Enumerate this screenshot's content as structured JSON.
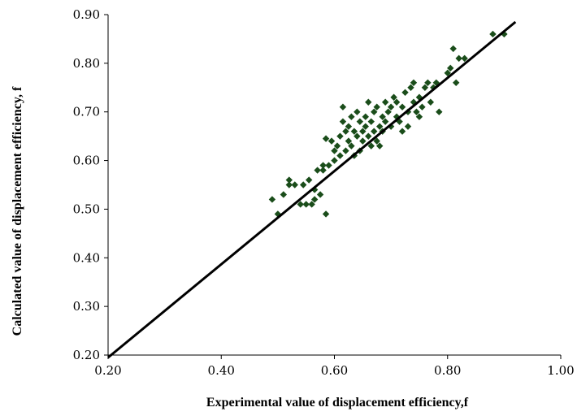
{
  "chart_data": {
    "type": "scatter",
    "title": "",
    "xlabel": "Experimental value of displacement efficiency,f",
    "ylabel": "Calculated value of displacement efficiency, f",
    "xlim": [
      0.2,
      1.0
    ],
    "ylim": [
      0.2,
      0.9
    ],
    "x_ticks": [
      "0.20",
      "0.40",
      "0.60",
      "0.80",
      "1.00"
    ],
    "y_ticks": [
      "0.20",
      "0.30",
      "0.40",
      "0.50",
      "0.60",
      "0.70",
      "0.80",
      "0.90"
    ],
    "grid": false,
    "legend": "none",
    "marker_color": "#1a4d1a",
    "line_color": "#000000",
    "reference_line": {
      "x": [
        0.2,
        0.92
      ],
      "y": [
        0.195,
        0.885
      ]
    },
    "series": [
      {
        "marker": "diamond",
        "points": [
          [
            0.49,
            0.52
          ],
          [
            0.5,
            0.49
          ],
          [
            0.51,
            0.53
          ],
          [
            0.52,
            0.56
          ],
          [
            0.52,
            0.55
          ],
          [
            0.53,
            0.55
          ],
          [
            0.54,
            0.51
          ],
          [
            0.545,
            0.55
          ],
          [
            0.55,
            0.51
          ],
          [
            0.555,
            0.56
          ],
          [
            0.56,
            0.51
          ],
          [
            0.565,
            0.54
          ],
          [
            0.565,
            0.52
          ],
          [
            0.57,
            0.58
          ],
          [
            0.575,
            0.53
          ],
          [
            0.58,
            0.59
          ],
          [
            0.58,
            0.58
          ],
          [
            0.585,
            0.49
          ],
          [
            0.585,
            0.645
          ],
          [
            0.59,
            0.59
          ],
          [
            0.595,
            0.64
          ],
          [
            0.6,
            0.62
          ],
          [
            0.6,
            0.6
          ],
          [
            0.605,
            0.63
          ],
          [
            0.61,
            0.61
          ],
          [
            0.61,
            0.65
          ],
          [
            0.615,
            0.68
          ],
          [
            0.615,
            0.71
          ],
          [
            0.62,
            0.66
          ],
          [
            0.62,
            0.62
          ],
          [
            0.625,
            0.64
          ],
          [
            0.625,
            0.67
          ],
          [
            0.63,
            0.63
          ],
          [
            0.63,
            0.69
          ],
          [
            0.635,
            0.66
          ],
          [
            0.635,
            0.61
          ],
          [
            0.64,
            0.65
          ],
          [
            0.64,
            0.7
          ],
          [
            0.645,
            0.68
          ],
          [
            0.645,
            0.62
          ],
          [
            0.65,
            0.66
          ],
          [
            0.65,
            0.64
          ],
          [
            0.655,
            0.69
          ],
          [
            0.655,
            0.67
          ],
          [
            0.66,
            0.65
          ],
          [
            0.66,
            0.72
          ],
          [
            0.665,
            0.68
          ],
          [
            0.665,
            0.63
          ],
          [
            0.67,
            0.66
          ],
          [
            0.67,
            0.7
          ],
          [
            0.675,
            0.64
          ],
          [
            0.675,
            0.71
          ],
          [
            0.68,
            0.67
          ],
          [
            0.68,
            0.63
          ],
          [
            0.685,
            0.69
          ],
          [
            0.685,
            0.66
          ],
          [
            0.69,
            0.72
          ],
          [
            0.69,
            0.68
          ],
          [
            0.695,
            0.7
          ],
          [
            0.7,
            0.67
          ],
          [
            0.7,
            0.71
          ],
          [
            0.705,
            0.73
          ],
          [
            0.71,
            0.69
          ],
          [
            0.71,
            0.72
          ],
          [
            0.715,
            0.68
          ],
          [
            0.72,
            0.71
          ],
          [
            0.72,
            0.66
          ],
          [
            0.725,
            0.74
          ],
          [
            0.73,
            0.7
          ],
          [
            0.73,
            0.67
          ],
          [
            0.735,
            0.75
          ],
          [
            0.74,
            0.72
          ],
          [
            0.74,
            0.76
          ],
          [
            0.745,
            0.7
          ],
          [
            0.75,
            0.73
          ],
          [
            0.75,
            0.69
          ],
          [
            0.755,
            0.71
          ],
          [
            0.76,
            0.75
          ],
          [
            0.765,
            0.76
          ],
          [
            0.77,
            0.72
          ],
          [
            0.775,
            0.75
          ],
          [
            0.78,
            0.76
          ],
          [
            0.785,
            0.7
          ],
          [
            0.8,
            0.78
          ],
          [
            0.805,
            0.79
          ],
          [
            0.81,
            0.83
          ],
          [
            0.815,
            0.76
          ],
          [
            0.82,
            0.81
          ],
          [
            0.83,
            0.81
          ],
          [
            0.88,
            0.86
          ],
          [
            0.9,
            0.86
          ]
        ]
      }
    ]
  }
}
